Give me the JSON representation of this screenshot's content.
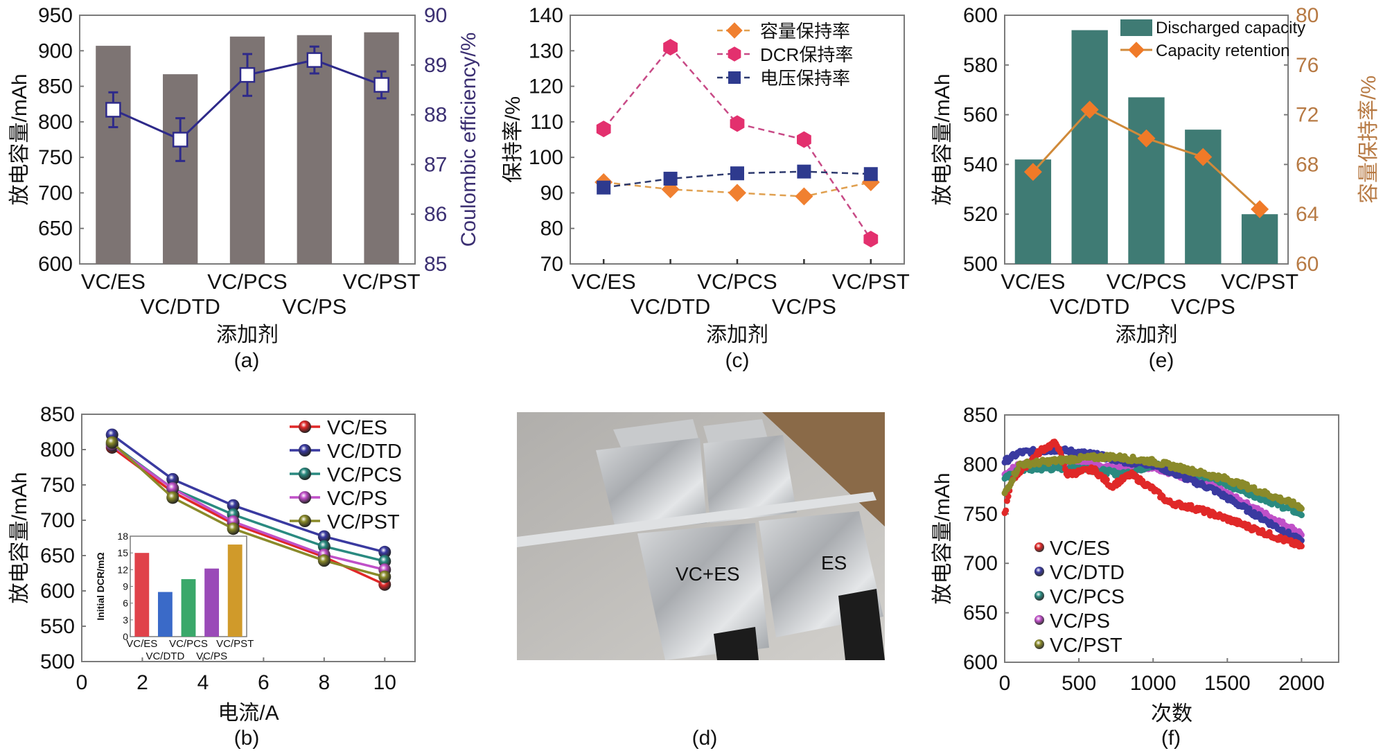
{
  "colors": {
    "frame": "#7a7a7a",
    "bar_gray": "#7d7473",
    "ce_line": "#2e2a8a",
    "ce_axis": "#3b2f72",
    "teal_bar": "#3f7b74",
    "retention_line": "#d08a3a",
    "retention_marker": "#f07a28",
    "retention_axis": "#b77a44"
  },
  "chart_data": [
    {
      "id": "a",
      "type": "bar",
      "caption": "(a)",
      "categories": [
        "VC/ES",
        "VC/DTD",
        "VC/PCS",
        "VC/PS",
        "VC/PST"
      ],
      "xlabel": "添加剂",
      "ylabel": "放电容量/mAh",
      "ylabel_right": "Coulombic efficiency/%",
      "ylim": [
        600,
        950
      ],
      "yticks": [
        600,
        650,
        700,
        750,
        800,
        850,
        900,
        950
      ],
      "ylim_right": [
        85,
        90
      ],
      "yticks_right": [
        85,
        86,
        87,
        88,
        89,
        90
      ],
      "series": [
        {
          "name": "Discharge capacity",
          "axis": "left",
          "kind": "bar",
          "values": [
            907,
            867,
            920,
            922,
            926
          ]
        },
        {
          "name": "Coulombic efficiency",
          "axis": "right",
          "kind": "line",
          "values": [
            88.1,
            87.5,
            88.8,
            89.1,
            88.6
          ],
          "errors": [
            0.35,
            0.43,
            0.42,
            0.27,
            0.27
          ]
        }
      ]
    },
    {
      "id": "c",
      "type": "line",
      "caption": "(c)",
      "categories": [
        "VC/ES",
        "VC/DTD",
        "VC/PCS",
        "VC/PS",
        "VC/PST"
      ],
      "xlabel": "添加剂",
      "ylabel": "保持率/%",
      "ylim": [
        70,
        140
      ],
      "yticks": [
        70,
        80,
        90,
        100,
        110,
        120,
        130,
        140
      ],
      "legend_position": "top-right",
      "series": [
        {
          "name": "容量保持率",
          "color": "#f08030",
          "marker": "diamond",
          "line": "#e0a050",
          "values": [
            93,
            91,
            90,
            89,
            93
          ]
        },
        {
          "name": "DCR保持率",
          "color": "#e3306e",
          "marker": "hexagon",
          "line": "#c84a86",
          "values": [
            108,
            131,
            109.5,
            105,
            77
          ]
        },
        {
          "name": "电压保持率",
          "color": "#2e3a8e",
          "marker": "square",
          "line": "#2e3a6e",
          "values": [
            91.5,
            94,
            95.5,
            96,
            95.3
          ]
        }
      ]
    },
    {
      "id": "e",
      "type": "bar",
      "caption": "(e)",
      "categories": [
        "VC/ES",
        "VC/DTD",
        "VC/PCS",
        "VC/PS",
        "VC/PST"
      ],
      "xlabel": "添加剂",
      "ylabel": "放电容量/mAh",
      "ylabel_right": "容量保持率/%",
      "ylim": [
        500,
        600
      ],
      "yticks": [
        500,
        520,
        540,
        560,
        580,
        600
      ],
      "ylim_right": [
        60,
        80
      ],
      "yticks_right": [
        60,
        64,
        68,
        72,
        76,
        80
      ],
      "legend_position": "top-right",
      "series": [
        {
          "name": "Discharged capacity",
          "axis": "left",
          "kind": "bar",
          "values": [
            542,
            594,
            567,
            554,
            520
          ]
        },
        {
          "name": "Capacity retention",
          "axis": "right",
          "kind": "line",
          "values": [
            67.4,
            72.4,
            70.1,
            68.6,
            64.4
          ]
        }
      ]
    },
    {
      "id": "b",
      "type": "line",
      "caption": "(b)",
      "x": [
        1,
        3,
        5,
        8,
        10
      ],
      "xlabel": "电流/A",
      "ylabel": "放电容量/mAh",
      "xlim": [
        0,
        11
      ],
      "xticks": [
        0,
        2,
        4,
        6,
        8,
        10
      ],
      "ylim": [
        500,
        850
      ],
      "yticks": [
        500,
        550,
        600,
        650,
        700,
        750,
        800,
        850
      ],
      "legend_position": "top-right",
      "series": [
        {
          "name": "VC/ES",
          "color": "#e02828",
          "values": [
            803,
            740,
            695,
            648,
            609
          ]
        },
        {
          "name": "VC/DTD",
          "color": "#3a3aa0",
          "values": [
            821,
            758,
            721,
            677,
            655
          ]
        },
        {
          "name": "VC/PCS",
          "color": "#2a8a80",
          "values": [
            808,
            745,
            708,
            663,
            642
          ]
        },
        {
          "name": "VC/PS",
          "color": "#c050c8",
          "values": [
            806,
            745,
            698,
            651,
            630
          ]
        },
        {
          "name": "VC/PST",
          "color": "#8a8a2a",
          "values": [
            810,
            732,
            688,
            643,
            620
          ]
        }
      ],
      "inset": {
        "type": "bar",
        "ylabel": "Initial DCR/mΩ",
        "categories": [
          "VC/ES",
          "VC/DTD",
          "VC/PCS",
          "VC/PS",
          "VC/PST"
        ],
        "ylim": [
          0,
          18
        ],
        "yticks": [
          0,
          3,
          6,
          9,
          12,
          15,
          18
        ],
        "values": [
          15,
          8,
          10.3,
          12.2,
          16.5
        ],
        "colors": [
          "#e0424a",
          "#3a6ac8",
          "#3aa86a",
          "#9a4ab8",
          "#d09a2a"
        ]
      }
    },
    {
      "id": "f",
      "type": "scatter",
      "caption": "(f)",
      "xlabel": "次数",
      "ylabel": "放电容量/mAh",
      "xlim": [
        0,
        2250
      ],
      "xticks": [
        0,
        500,
        1000,
        1500,
        2000
      ],
      "ylim": [
        600,
        850
      ],
      "yticks": [
        600,
        650,
        700,
        750,
        800,
        850
      ],
      "legend_position": "bottom-left",
      "series": [
        {
          "name": "VC/ES",
          "color": "#e02828",
          "points": [
            [
              0,
              750
            ],
            [
              50,
              785
            ],
            [
              150,
              800
            ],
            [
              250,
              815
            ],
            [
              350,
              822
            ],
            [
              420,
              790
            ],
            [
              600,
              795
            ],
            [
              720,
              778
            ],
            [
              850,
              790
            ],
            [
              1000,
              775
            ],
            [
              1100,
              762
            ],
            [
              1300,
              755
            ],
            [
              1500,
              745
            ],
            [
              2000,
              717
            ]
          ]
        },
        {
          "name": "VC/DTD",
          "color": "#3a3aa0",
          "points": [
            [
              0,
              803
            ],
            [
              100,
              812
            ],
            [
              350,
              815
            ],
            [
              600,
              810
            ],
            [
              800,
              803
            ],
            [
              1000,
              800
            ],
            [
              1400,
              775
            ],
            [
              2000,
              722
            ]
          ]
        },
        {
          "name": "VC/PCS",
          "color": "#2a8a80",
          "points": [
            [
              0,
              785
            ],
            [
              100,
              795
            ],
            [
              500,
              797
            ],
            [
              800,
              790
            ],
            [
              1000,
              800
            ],
            [
              1400,
              786
            ],
            [
              2000,
              750
            ]
          ]
        },
        {
          "name": "VC/PS",
          "color": "#c050c8",
          "points": [
            [
              0,
              790
            ],
            [
              100,
              800
            ],
            [
              500,
              802
            ],
            [
              800,
              795
            ],
            [
              1000,
              798
            ],
            [
              1400,
              778
            ],
            [
              2000,
              730
            ]
          ]
        },
        {
          "name": "VC/PST",
          "color": "#8a8a2a",
          "points": [
            [
              0,
              770
            ],
            [
              100,
              800
            ],
            [
              500,
              806
            ],
            [
              720,
              808
            ],
            [
              1000,
              803
            ],
            [
              1500,
              785
            ],
            [
              2000,
              757
            ]
          ]
        }
      ]
    }
  ],
  "photo": {
    "caption": "(d)",
    "label_left": "VC+ES",
    "label_right": "ES"
  }
}
